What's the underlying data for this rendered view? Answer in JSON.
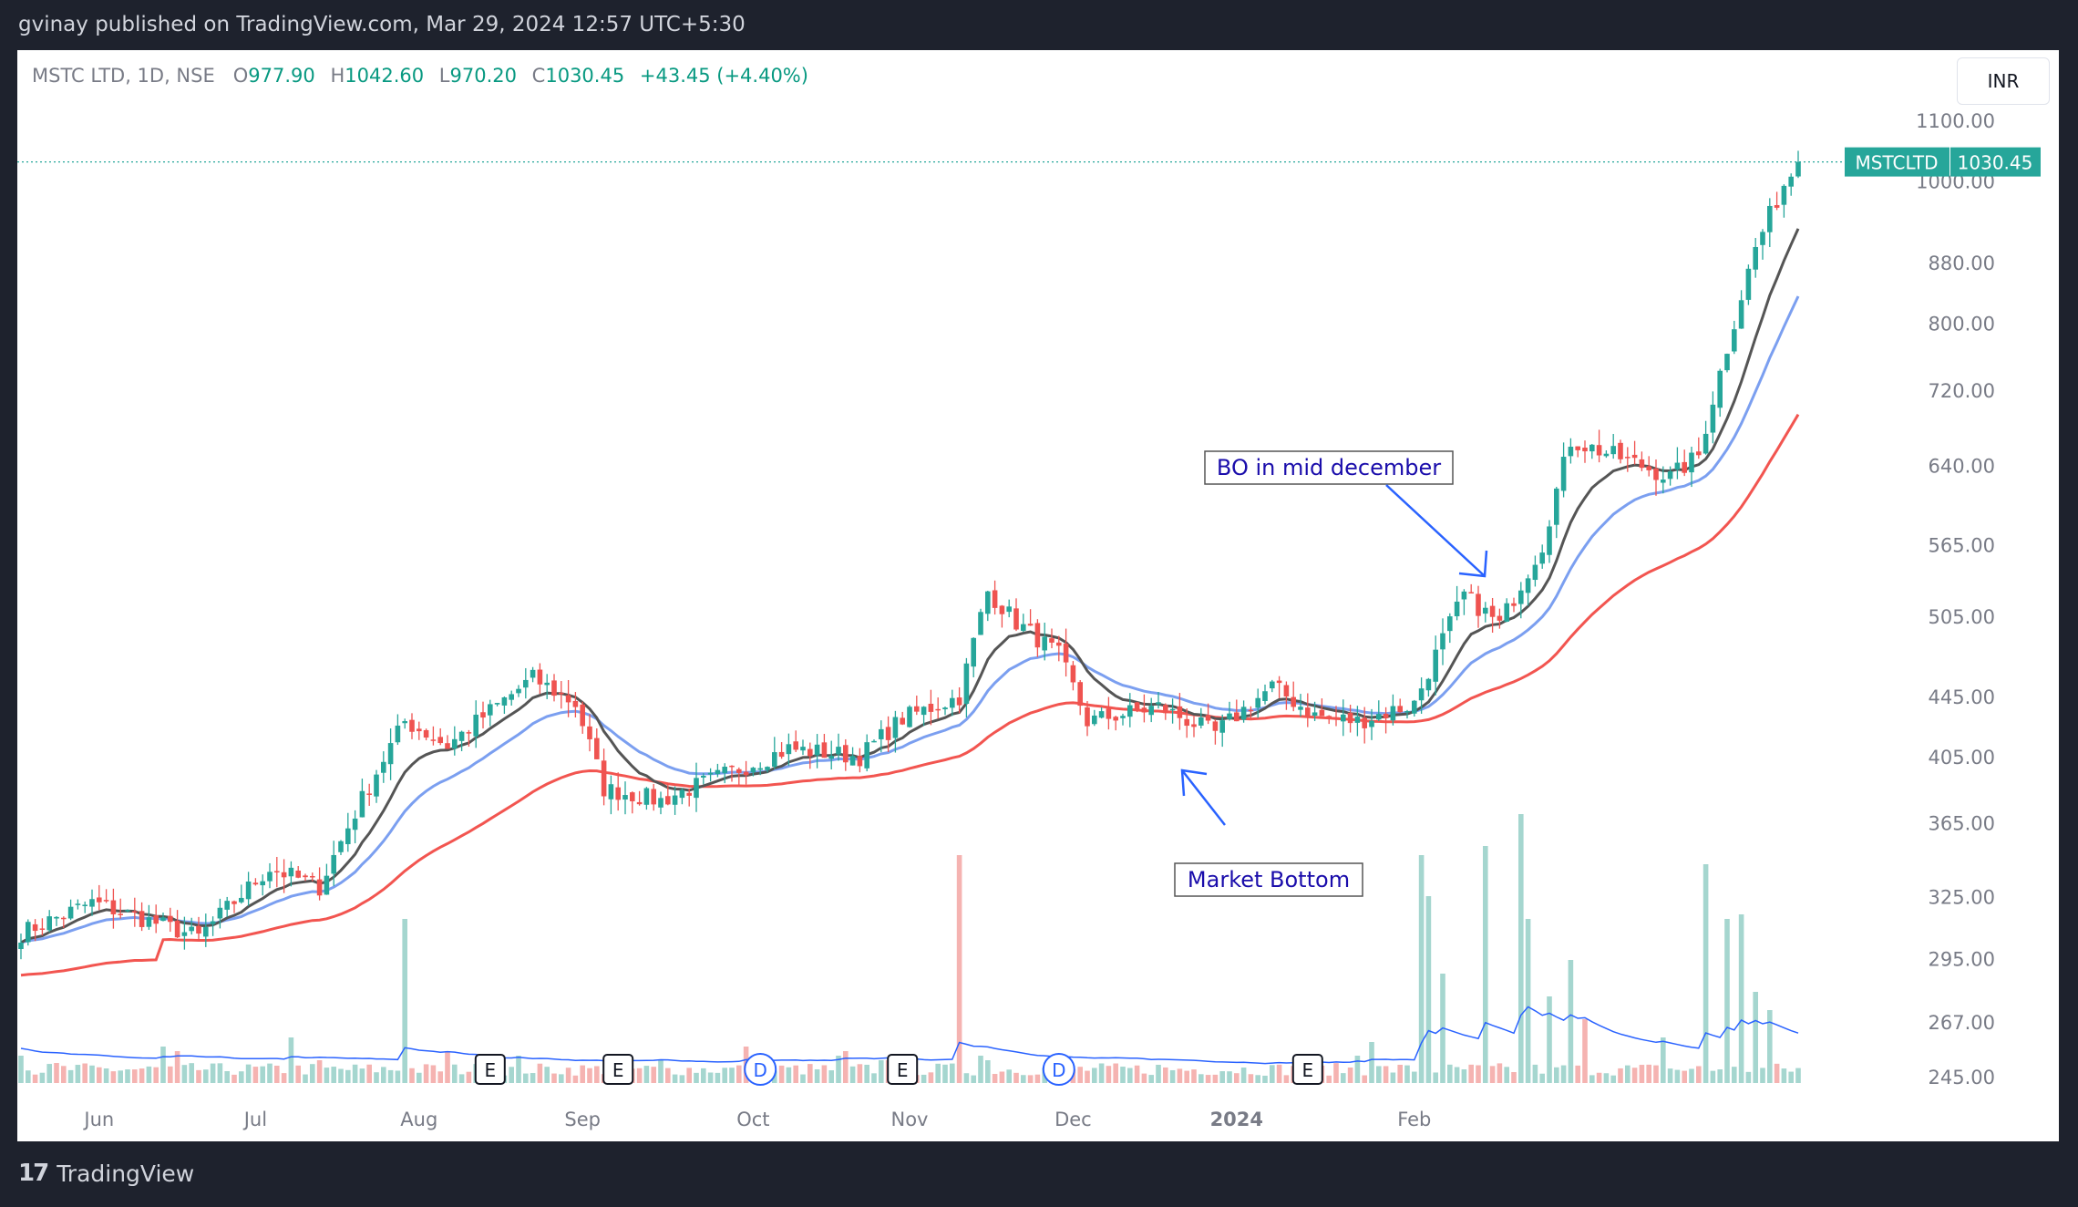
{
  "publish_bar": "gvinay published on TradingView.com, Mar 29, 2024 12:57 UTC+5:30",
  "legend": {
    "symbol": "MSTC LTD, 1D, NSE",
    "o": "977.90",
    "h": "1042.60",
    "l": "970.20",
    "c": "1030.45",
    "change": "+43.45 (+4.40%)"
  },
  "currency_button": "INR",
  "footer_brand": "TradingView",
  "chart_data": {
    "type": "candlestick",
    "price_axis": [
      "1100.00",
      "1000.00",
      "880.00",
      "800.00",
      "720.00",
      "640.00",
      "565.00",
      "505.00",
      "445.00",
      "405.00",
      "365.00",
      "325.00",
      "295.00",
      "267.00",
      "245.00"
    ],
    "time_axis": [
      "Jun",
      "Jul",
      "Aug",
      "Sep",
      "Oct",
      "Nov",
      "Dec",
      "2024",
      "Feb"
    ],
    "last_price_tag": {
      "symbol": "MSTCLTD",
      "price": "1030.45"
    },
    "annotations": [
      {
        "text": "BO in mid december"
      },
      {
        "text": "Market Bottom"
      }
    ],
    "event_markers": [
      "E",
      "E",
      "D",
      "E",
      "D",
      "E"
    ],
    "colors": {
      "up": "#26a69a",
      "down": "#ef5350",
      "ma_fast": "#555555",
      "ma_mid": "#7b9ff0",
      "ma_slow": "#f25550",
      "volume_avg": "#2962ff",
      "annotation": "#1a0dab"
    },
    "anchors": [
      {
        "t": 0,
        "p": 307
      },
      {
        "t": 10,
        "p": 322
      },
      {
        "t": 25,
        "p": 305
      },
      {
        "t": 35,
        "p": 340
      },
      {
        "t": 42,
        "p": 330
      },
      {
        "t": 54,
        "p": 428
      },
      {
        "t": 60,
        "p": 412
      },
      {
        "t": 72,
        "p": 458
      },
      {
        "t": 78,
        "p": 440
      },
      {
        "t": 82,
        "p": 385
      },
      {
        "t": 90,
        "p": 378
      },
      {
        "t": 98,
        "p": 392
      },
      {
        "t": 108,
        "p": 410
      },
      {
        "t": 118,
        "p": 405
      },
      {
        "t": 124,
        "p": 430
      },
      {
        "t": 132,
        "p": 445
      },
      {
        "t": 136,
        "p": 525
      },
      {
        "t": 140,
        "p": 500
      },
      {
        "t": 146,
        "p": 475
      },
      {
        "t": 150,
        "p": 428
      },
      {
        "t": 160,
        "p": 438
      },
      {
        "t": 168,
        "p": 420
      },
      {
        "t": 176,
        "p": 452
      },
      {
        "t": 182,
        "p": 432
      },
      {
        "t": 188,
        "p": 428
      },
      {
        "t": 196,
        "p": 440
      },
      {
        "t": 203,
        "p": 522
      },
      {
        "t": 208,
        "p": 498
      },
      {
        "t": 214,
        "p": 565
      },
      {
        "t": 218,
        "p": 665
      },
      {
        "t": 226,
        "p": 645
      },
      {
        "t": 232,
        "p": 628
      },
      {
        "t": 236,
        "p": 650
      },
      {
        "t": 240,
        "p": 770
      },
      {
        "t": 244,
        "p": 900
      },
      {
        "t": 248,
        "p": 995
      },
      {
        "t": 250,
        "p": 1030
      }
    ],
    "n_bars": 251
  }
}
